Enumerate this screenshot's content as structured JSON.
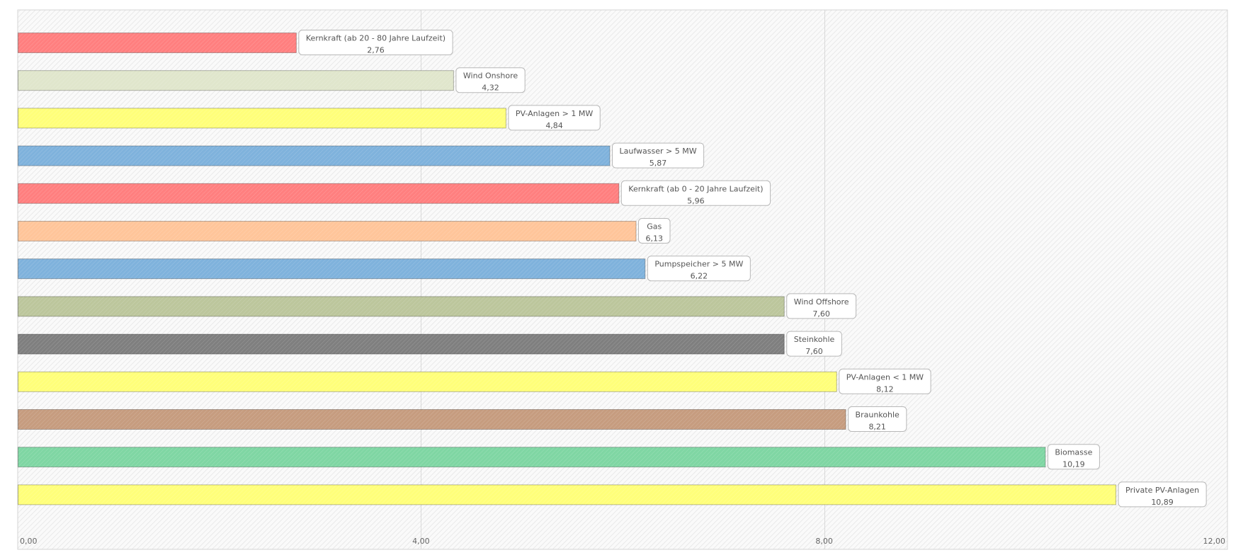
{
  "chart_data": {
    "type": "bar",
    "orientation": "horizontal",
    "title": "",
    "xlabel": "",
    "ylabel": "",
    "xlim": [
      0,
      12
    ],
    "x_ticks": [
      0,
      4,
      8,
      12
    ],
    "x_tick_labels": [
      "0,00",
      "4,00",
      "8,00",
      "12,00"
    ],
    "grid": "vertical",
    "legend": "none",
    "background": "hatched-light-grey",
    "bars": [
      {
        "label": "Kernkraft  (ab  20 -  80 Jahre  Laufzeit)",
        "value": 2.76,
        "value_label": "2,76",
        "color": "#ff7f7f"
      },
      {
        "label": "Wind Onshore",
        "value": 4.32,
        "value_label": "4,32",
        "color": "#e0e6cc"
      },
      {
        "label": "PV-Anlagen  > 1  MW",
        "value": 4.84,
        "value_label": "4,84",
        "color": "#ffff7a"
      },
      {
        "label": "Laufwasser  > 5  MW",
        "value": 5.87,
        "value_label": "5,87",
        "color": "#7fb2dc"
      },
      {
        "label": "Kernkraft  (ab  0 - 20 Jahre  Laufzeit)",
        "value": 5.96,
        "value_label": "5,96",
        "color": "#ff7f7f"
      },
      {
        "label": "Gas",
        "value": 6.13,
        "value_label": "6,13",
        "color": "#ffc59a"
      },
      {
        "label": "Pumpspeicher  > 5  MW",
        "value": 6.22,
        "value_label": "6,22",
        "color": "#7fb2dc"
      },
      {
        "label": "Wind Offshore",
        "value": 7.6,
        "value_label": "7,60",
        "color": "#bcc69c"
      },
      {
        "label": "Steinkohle",
        "value": 7.6,
        "value_label": "7,60",
        "color": "#7f7f7f"
      },
      {
        "label": "PV-Anlagen  < 1  MW",
        "value": 8.12,
        "value_label": "8,12",
        "color": "#ffff7a"
      },
      {
        "label": "Braunkohle",
        "value": 8.21,
        "value_label": "8,21",
        "color": "#c69c7f"
      },
      {
        "label": "Biomasse",
        "value": 10.19,
        "value_label": "10,19",
        "color": "#7fd6a3"
      },
      {
        "label": "Private  PV-Anlagen",
        "value": 10.89,
        "value_label": "10,89",
        "color": "#ffff7a"
      }
    ]
  }
}
